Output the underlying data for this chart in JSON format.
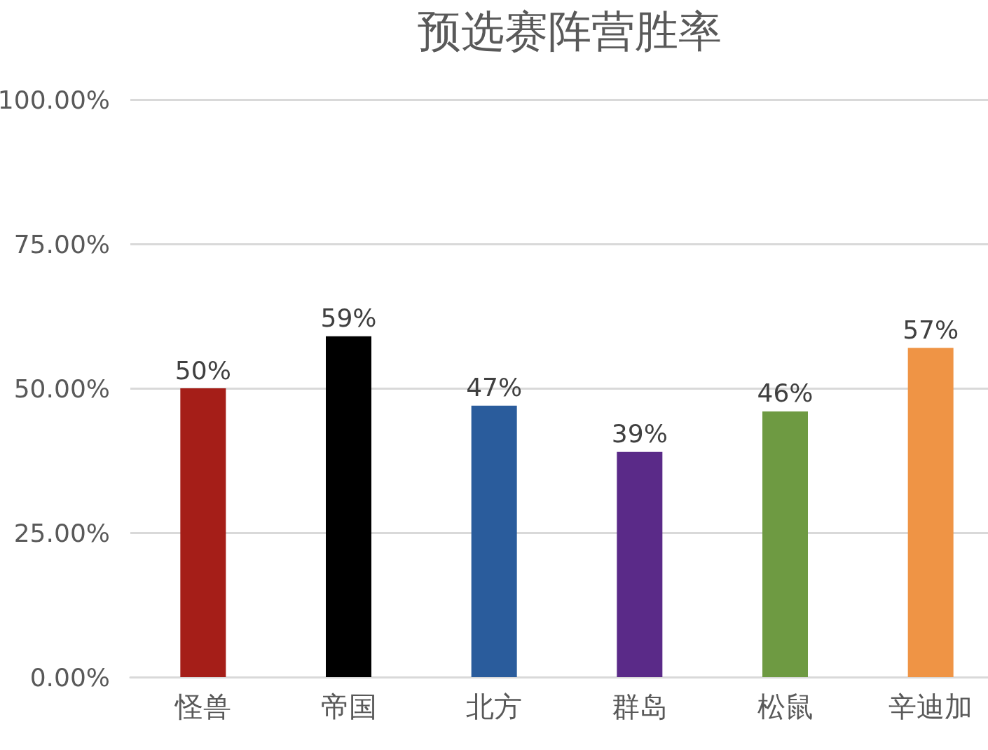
{
  "chart_data": {
    "type": "bar",
    "title": "预选赛阵营胜率",
    "categories": [
      "怪兽",
      "帝国",
      "北方",
      "群岛",
      "松鼠",
      "辛迪加"
    ],
    "values": [
      50,
      59,
      47,
      39,
      46,
      57
    ],
    "value_labels": [
      "50%",
      "59%",
      "47%",
      "39%",
      "46%",
      "57%"
    ],
    "colors": [
      "#a51e18",
      "#000000",
      "#2a5c9c",
      "#5a2a88",
      "#6e9a42",
      "#ef9445"
    ],
    "ylim": [
      0,
      100
    ],
    "yticks": [
      {
        "value": 0,
        "label": "0.00%"
      },
      {
        "value": 25,
        "label": "25.00%"
      },
      {
        "value": 50,
        "label": "50.00%"
      },
      {
        "value": 75,
        "label": "75.00%"
      },
      {
        "value": 100,
        "label": "100.00%"
      }
    ],
    "grid": "y"
  }
}
